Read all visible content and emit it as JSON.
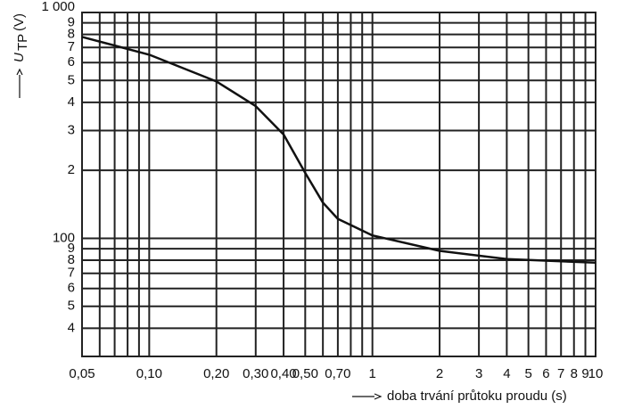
{
  "chart_data": {
    "type": "line",
    "xscale": "log",
    "yscale": "log",
    "grid": true,
    "color": "#111",
    "ylabel_symbol": "U",
    "ylabel_subscript": "TP",
    "ylabel_unit": "(V)",
    "xlabel": "doba trvání průtoku proudu (s)",
    "xlim": [
      0.05,
      10
    ],
    "ylim": [
      30,
      1000
    ],
    "xticks": [
      {
        "value": 0.05,
        "label": "0,05"
      },
      {
        "value": 0.1,
        "label": "0,10"
      },
      {
        "value": 0.2,
        "label": "0,20"
      },
      {
        "value": 0.3,
        "label": "0,30"
      },
      {
        "value": 0.4,
        "label": "0,40"
      },
      {
        "value": 0.5,
        "label": "0,50"
      },
      {
        "value": 0.7,
        "label": "0,70"
      },
      1,
      2,
      3,
      4,
      5,
      6,
      7,
      8,
      9,
      10
    ],
    "xminor": [
      0.06,
      0.07,
      0.08,
      0.09,
      0.6,
      0.8,
      0.9
    ],
    "yticks": [
      {
        "value": 1000,
        "label": "1 000"
      },
      {
        "value": 900,
        "label": "9"
      },
      {
        "value": 800,
        "label": "8"
      },
      {
        "value": 700,
        "label": "7"
      },
      {
        "value": 600,
        "label": "6"
      },
      {
        "value": 500,
        "label": "5"
      },
      {
        "value": 400,
        "label": "4"
      },
      {
        "value": 300,
        "label": "3"
      },
      {
        "value": 200,
        "label": "2"
      },
      100,
      {
        "value": 90,
        "label": "9"
      },
      {
        "value": 80,
        "label": "8"
      },
      {
        "value": 70,
        "label": "7"
      },
      {
        "value": 60,
        "label": "6"
      },
      {
        "value": 50,
        "label": "5"
      },
      {
        "value": 40,
        "label": "4"
      }
    ],
    "x": [
      0.05,
      0.1,
      0.2,
      0.3,
      0.4,
      0.5,
      0.6,
      0.7,
      1,
      2,
      4,
      10
    ],
    "values": [
      780,
      650,
      495,
      385,
      288,
      195,
      144,
      122,
      103,
      88,
      81,
      78
    ]
  }
}
